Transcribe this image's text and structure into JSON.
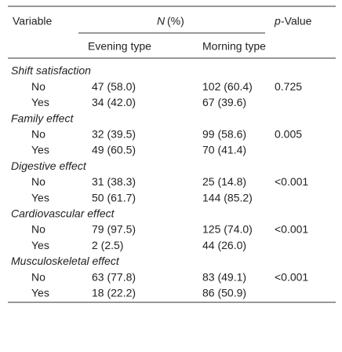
{
  "header": {
    "variable": "Variable",
    "n": "N",
    "pct": "(%)",
    "p": "p",
    "p_suffix": "-Value"
  },
  "subheader": [
    "Evening type",
    "Morning type"
  ],
  "groups": [
    {
      "name": "Shift satisfaction",
      "p_value": "0.725",
      "rows": [
        {
          "label": "No",
          "evening": "47 (58.0)",
          "morning": "102 (60.4)"
        },
        {
          "label": "Yes",
          "evening": "34 (42.0)",
          "morning": "67 (39.6)"
        }
      ]
    },
    {
      "name": "Family effect",
      "p_value": "0.005",
      "rows": [
        {
          "label": "No",
          "evening": "32 (39.5)",
          "morning": "99 (58.6)"
        },
        {
          "label": "Yes",
          "evening": "49 (60.5)",
          "morning": "70 (41.4)"
        }
      ]
    },
    {
      "name": "Digestive effect",
      "p_value": "<0.001",
      "rows": [
        {
          "label": "No",
          "evening": "31 (38.3)",
          "morning": "25 (14.8)"
        },
        {
          "label": "Yes",
          "evening": "50 (61.7)",
          "morning": "144 (85.2)"
        }
      ]
    },
    {
      "name": "Cardiovascular effect",
      "p_value": "<0.001",
      "rows": [
        {
          "label": "No",
          "evening": "79 (97.5)",
          "morning": "125 (74.0)"
        },
        {
          "label": "Yes",
          "evening": "2 (2.5)",
          "morning": "44 (26.0)"
        }
      ]
    },
    {
      "name": "Musculoskeletal effect",
      "p_value": "<0.001",
      "rows": [
        {
          "label": "No",
          "evening": "63 (77.8)",
          "morning": "83 (49.1)"
        },
        {
          "label": "Yes",
          "evening": "18 (22.2)",
          "morning": "86 (50.9)"
        }
      ]
    }
  ]
}
